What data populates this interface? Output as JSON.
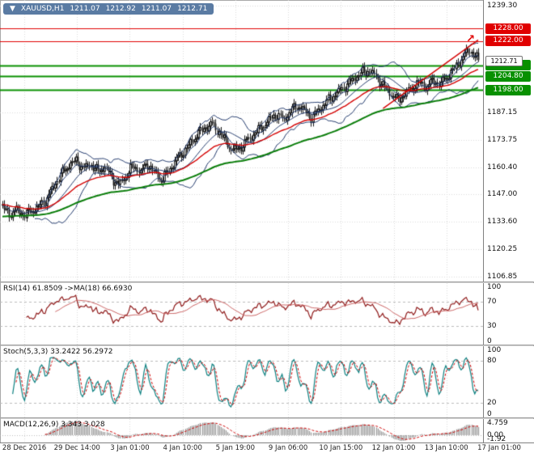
{
  "window": {
    "collapse_icon": "▼",
    "title": "XAUUSD,H1",
    "ohlc": {
      "open": "1211.07",
      "high": "1212.92",
      "low": "1211.07",
      "close": "1212.71"
    }
  },
  "colors": {
    "grid": "#d9d9d9",
    "axis_text": "#111111",
    "candle": "#151515",
    "candle_up_fill": "#ffffff",
    "bollinger": "#20386b",
    "ma_fast": "#d40000",
    "ma_slow": "#0a7d0a",
    "level_red": "#e00000",
    "level_green": "#089000",
    "rsi": "#8f1a1a",
    "rsi_ma": "#c96060",
    "stoch_k": "#0d8080",
    "stoch_d": "#cc0000",
    "macd_hist": "#9c9c9c",
    "macd_signal": "#cc0000",
    "header_bg": "#5a7ba3",
    "header_text": "#ffffff",
    "marker": "#e00000",
    "silver_level": "#bbbbbb"
  },
  "time_axis": {
    "labels": [
      "28 Dec 2016",
      "29 Dec 14:00",
      "3 Jan 01:00",
      "4 Jan 10:00",
      "5 Jan 19:00",
      "9 Jan 06:00",
      "10 Jan 15:00",
      "12 Jan 01:00",
      "13 Jan 10:00",
      "17 Jan 01:00"
    ]
  },
  "chart_data": [
    {
      "type": "candlestick",
      "symbol": "XAUUSD",
      "timeframe": "H1",
      "candles": 280,
      "ylim": [
        1104.5,
        1242.0
      ],
      "y_axis_labels": [
        {
          "text": "1239.30",
          "price": 1239.3
        },
        {
          "text": "1187.15",
          "price": 1187.15
        },
        {
          "text": "1173.75",
          "price": 1173.75
        },
        {
          "text": "1160.40",
          "price": 1160.4
        },
        {
          "text": "1147.00",
          "price": 1147.0
        },
        {
          "text": "1133.60",
          "price": 1133.6
        },
        {
          "text": "1120.25",
          "price": 1120.25
        },
        {
          "text": "1106.85",
          "price": 1106.85
        }
      ],
      "levels": [
        {
          "label": "1228.00",
          "price": 1228.0,
          "color": "red"
        },
        {
          "label": "1222.00",
          "price": 1222.0,
          "color": "red"
        },
        {
          "label": "1210.00",
          "price": 1210.0,
          "color": "green"
        },
        {
          "label": "1204.80",
          "price": 1204.8,
          "color": "green"
        },
        {
          "label": "1198.00",
          "price": 1198.0,
          "color": "green"
        }
      ],
      "current_price": {
        "label": "1212.71",
        "price": 1212.71
      },
      "indicators": {
        "bollinger_period": 20,
        "bollinger_dev": 2,
        "ma_navy_fast_period": 8,
        "ma_fast_red_period": 40,
        "ma_slow_green_period": 110
      },
      "trendline": {
        "frac1": 0.8,
        "price1": 1189.0,
        "frac2": 1.0,
        "price2": 1222.5
      },
      "marker": {
        "glyph": "↗",
        "frac": 0.985,
        "price": 1221.0
      },
      "price_path": [
        [
          0.0,
          1140.5
        ],
        [
          0.015,
          1137.5
        ],
        [
          0.03,
          1139.5
        ],
        [
          0.045,
          1137.0
        ],
        [
          0.06,
          1139.0
        ],
        [
          0.075,
          1140.5
        ],
        [
          0.09,
          1144.0
        ],
        [
          0.105,
          1150.0
        ],
        [
          0.12,
          1156.0
        ],
        [
          0.14,
          1161.5
        ],
        [
          0.155,
          1163.5
        ],
        [
          0.17,
          1159.5
        ],
        [
          0.185,
          1162.0
        ],
        [
          0.2,
          1158.0
        ],
        [
          0.215,
          1160.5
        ],
        [
          0.23,
          1155.0
        ],
        [
          0.245,
          1151.5
        ],
        [
          0.26,
          1156.5
        ],
        [
          0.275,
          1161.0
        ],
        [
          0.29,
          1158.0
        ],
        [
          0.305,
          1162.0
        ],
        [
          0.32,
          1157.5
        ],
        [
          0.335,
          1154.0
        ],
        [
          0.35,
          1159.0
        ],
        [
          0.365,
          1164.0
        ],
        [
          0.38,
          1168.0
        ],
        [
          0.395,
          1172.0
        ],
        [
          0.41,
          1176.5
        ],
        [
          0.425,
          1179.5
        ],
        [
          0.44,
          1181.5
        ],
        [
          0.455,
          1177.5
        ],
        [
          0.47,
          1172.5
        ],
        [
          0.485,
          1168.5
        ],
        [
          0.5,
          1170.0
        ],
        [
          0.515,
          1173.5
        ],
        [
          0.53,
          1177.0
        ],
        [
          0.545,
          1180.0
        ],
        [
          0.56,
          1183.5
        ],
        [
          0.575,
          1186.0
        ],
        [
          0.59,
          1183.5
        ],
        [
          0.605,
          1187.5
        ],
        [
          0.62,
          1190.5
        ],
        [
          0.635,
          1188.0
        ],
        [
          0.65,
          1184.5
        ],
        [
          0.665,
          1188.5
        ],
        [
          0.68,
          1192.0
        ],
        [
          0.695,
          1195.0
        ],
        [
          0.71,
          1198.0
        ],
        [
          0.725,
          1201.0
        ],
        [
          0.74,
          1204.0
        ],
        [
          0.755,
          1206.5
        ],
        [
          0.77,
          1207.5
        ],
        [
          0.785,
          1204.5
        ],
        [
          0.8,
          1200.0
        ],
        [
          0.815,
          1196.5
        ],
        [
          0.83,
          1193.0
        ],
        [
          0.845,
          1196.0
        ],
        [
          0.86,
          1199.0
        ],
        [
          0.875,
          1201.5
        ],
        [
          0.89,
          1199.5
        ],
        [
          0.905,
          1202.5
        ],
        [
          0.92,
          1201.0
        ],
        [
          0.935,
          1204.5
        ],
        [
          0.95,
          1208.5
        ],
        [
          0.965,
          1213.5
        ],
        [
          0.98,
          1217.5
        ],
        [
          0.99,
          1215.5
        ],
        [
          1.0,
          1212.71
        ]
      ]
    },
    {
      "type": "line",
      "name": "RSI",
      "label": "RSI(14) 61.8509 ->MA(18) 66.6930",
      "period": 14,
      "ma_period": 18,
      "current": 61.8509,
      "ma_current": 66.693,
      "ylim": [
        0,
        100
      ],
      "levels": [
        70,
        30
      ],
      "y_axis_labels": [
        {
          "text": "100",
          "value": 100
        },
        {
          "text": "70",
          "value": 70
        },
        {
          "text": "30",
          "value": 30
        },
        {
          "text": "0",
          "value": 0
        }
      ]
    },
    {
      "type": "line",
      "name": "Stochastic",
      "label": "Stoch(5,3,3) 33.2422 56.2972",
      "k": 5,
      "d": 3,
      "slowing": 3,
      "current_k": 33.2422,
      "current_d": 56.2972,
      "ylim": [
        0,
        100
      ],
      "levels": [
        80,
        20
      ],
      "y_axis_labels": [
        {
          "text": "100",
          "value": 100
        },
        {
          "text": "80",
          "value": 80
        },
        {
          "text": "20",
          "value": 20
        },
        {
          "text": "0",
          "value": 0
        }
      ]
    },
    {
      "type": "histogram",
      "name": "MACD",
      "label": "MACD(12,26,9) 3.343 3.028",
      "fast": 12,
      "slow": 26,
      "signal": 9,
      "current": "3.343",
      "signal_current": "3.028",
      "ylim": [
        -2.4,
        5.3
      ],
      "y_axis_labels": [
        {
          "text": "4.759",
          "value": 4.759
        },
        {
          "text": "0.00",
          "value": 0
        },
        {
          "text": "-1.92",
          "value": -1.92
        }
      ]
    }
  ]
}
